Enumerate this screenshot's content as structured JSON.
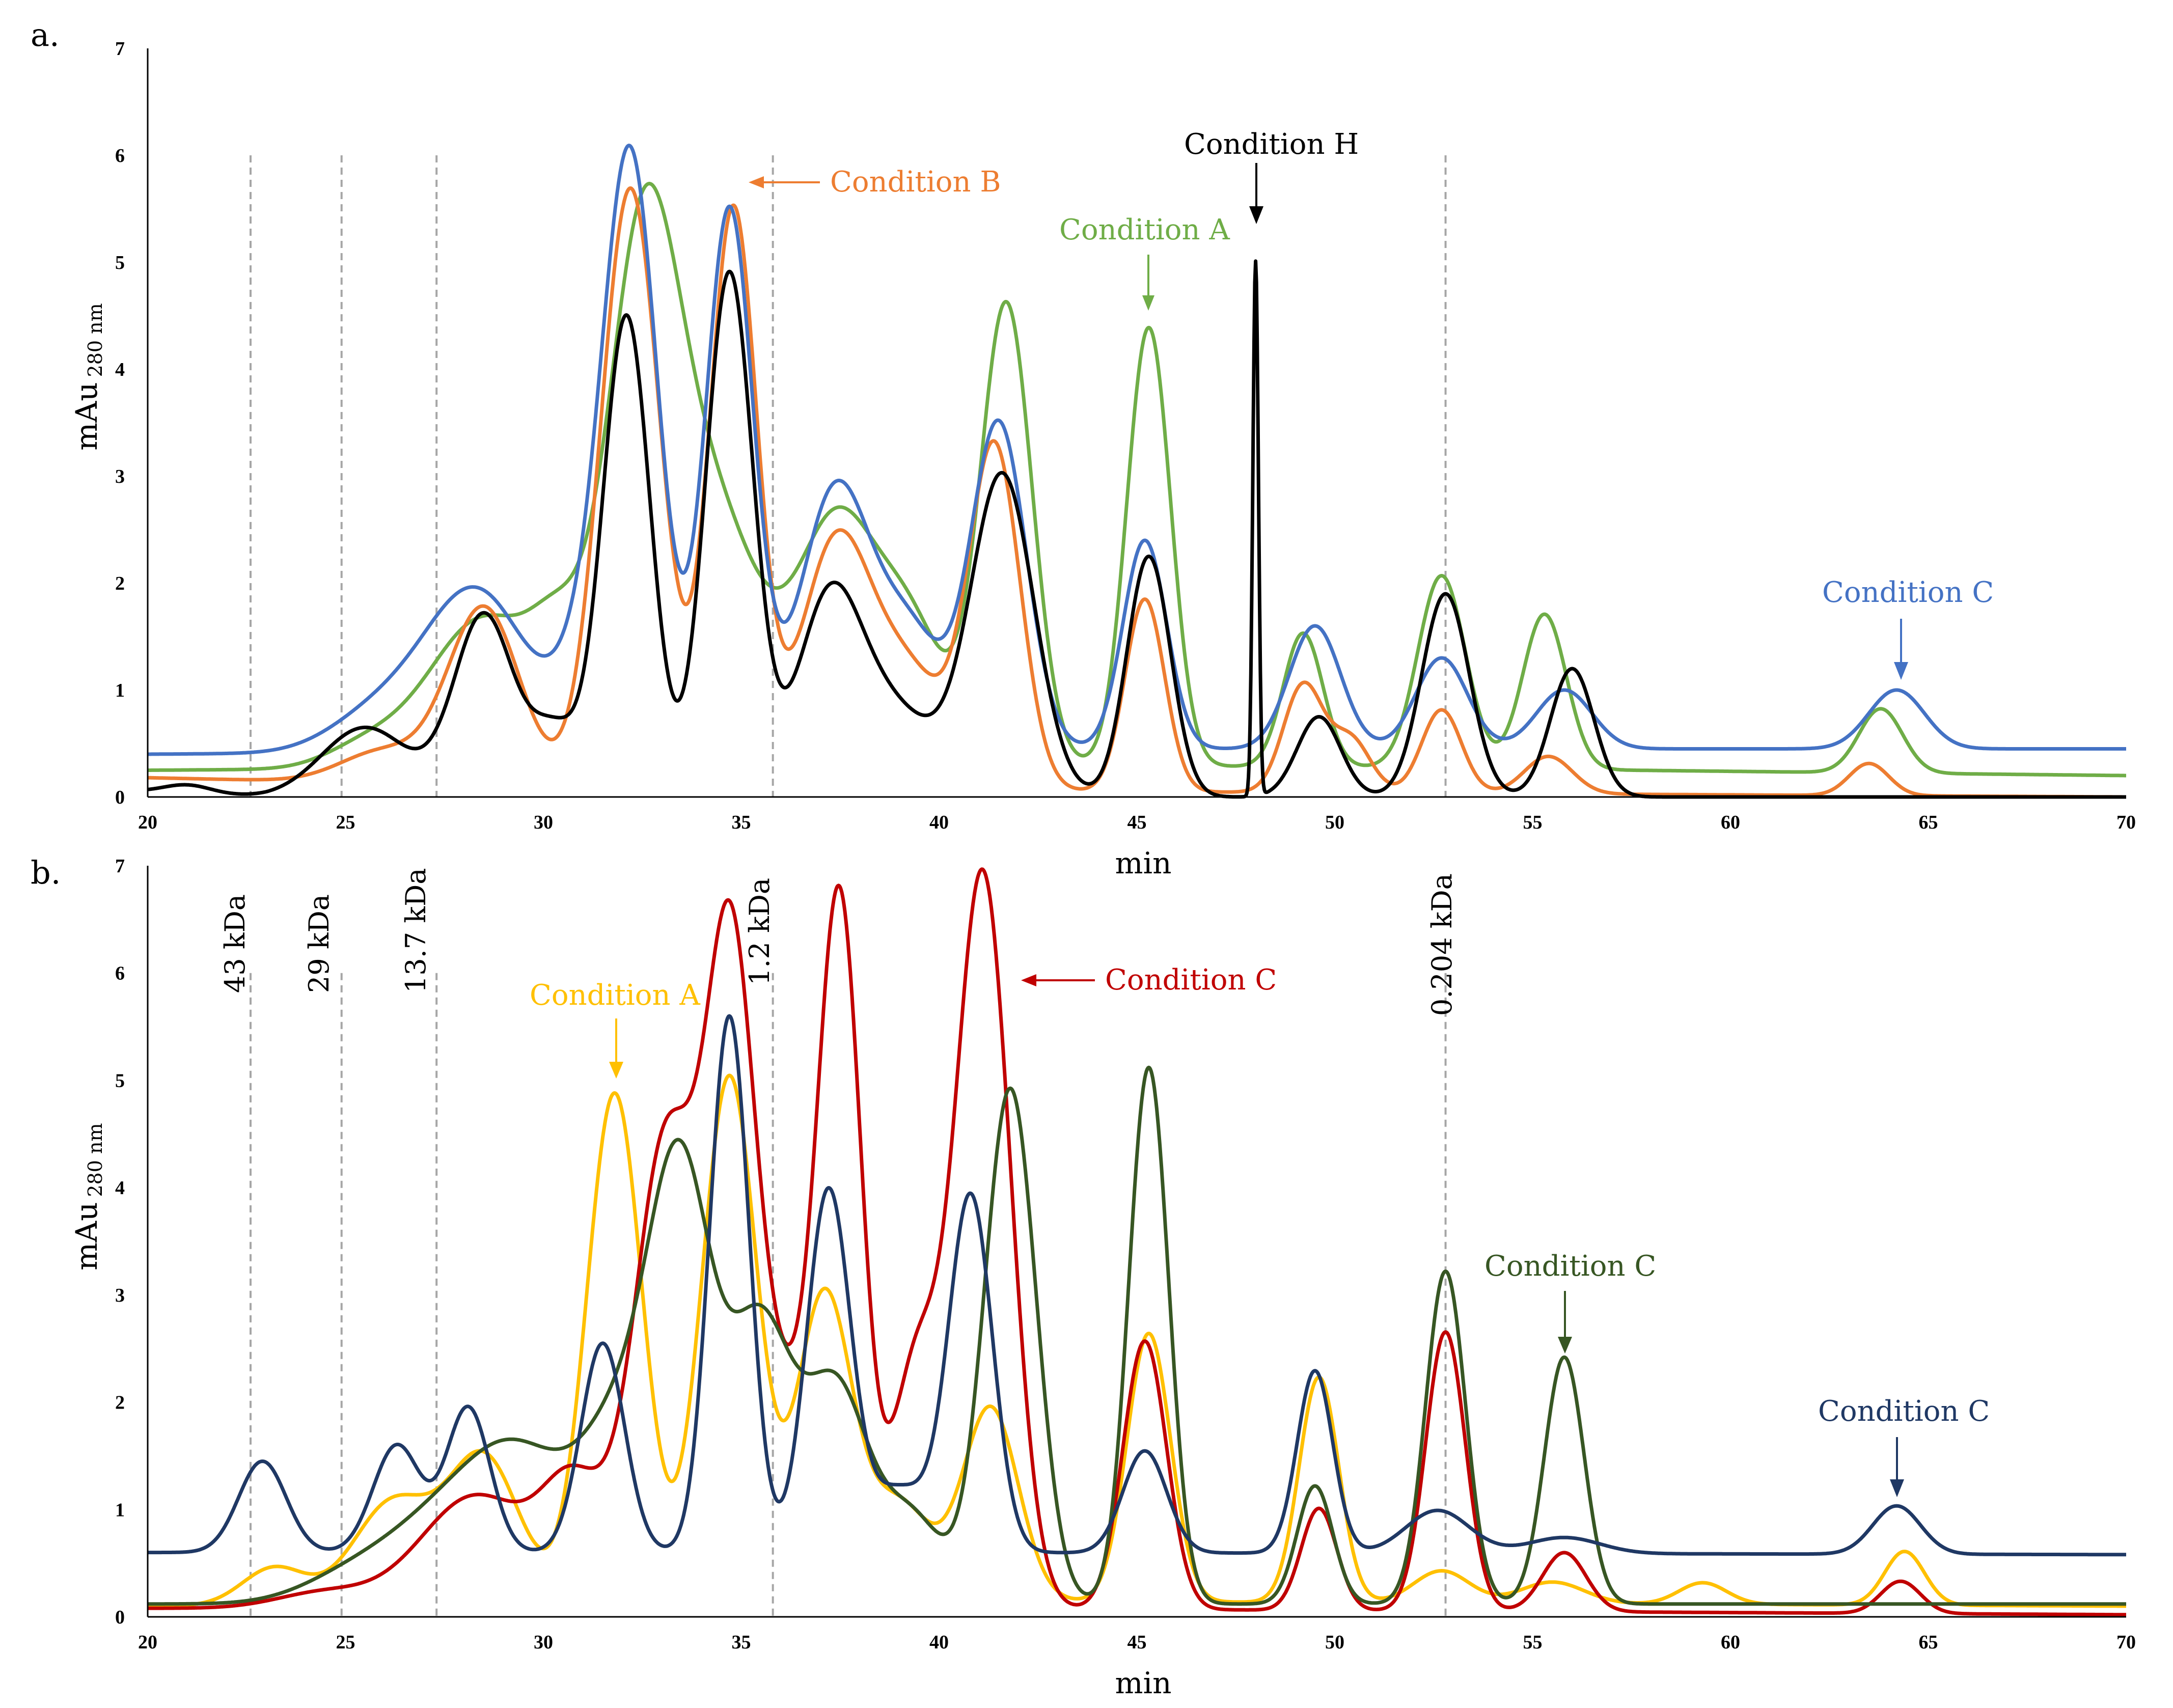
{
  "chart_data": [
    {
      "panel_label": "a.",
      "type": "line",
      "xlabel": "min",
      "ylabel": "mAu",
      "ylabel_sub": "280 nm",
      "xlim": [
        20,
        70
      ],
      "ylim": [
        0,
        7
      ],
      "x_ticks": [
        "20",
        "25",
        "30",
        "35",
        "40",
        "45",
        "50",
        "55",
        "60",
        "65",
        "70"
      ],
      "y_ticks": [
        "0",
        "1",
        "2",
        "3",
        "4",
        "5",
        "6",
        "7"
      ],
      "reference_lines_x": [
        22.6,
        24.9,
        27.3,
        35.8,
        52.8
      ],
      "series": [
        {
          "name": "Condition A",
          "color": "#6FAD47",
          "width": 7,
          "base": [
            [
              20,
              0.25
            ],
            [
              40,
              0.3
            ],
            [
              50,
              0.28
            ],
            [
              70,
              0.2
            ]
          ],
          "peaks": [
            [
              25.5,
              0.2,
              1.0
            ],
            [
              28.5,
              1.4,
              1.4
            ],
            [
              30.4,
              0.8,
              0.7
            ],
            [
              32.5,
              4.6,
              0.9
            ],
            [
              34.3,
              2.3,
              1.2
            ],
            [
              37.4,
              2.2,
              1.0
            ],
            [
              39.3,
              1.2,
              0.9
            ],
            [
              41.7,
              4.3,
              0.65
            ],
            [
              45.3,
              4.1,
              0.55
            ],
            [
              49.2,
              1.25,
              0.5
            ],
            [
              52.7,
              1.8,
              0.6
            ],
            [
              55.3,
              1.45,
              0.55
            ],
            [
              63.8,
              0.6,
              0.55
            ]
          ]
        },
        {
          "name": "Condition B",
          "color": "#ED7D31",
          "width": 7,
          "base": [
            [
              20,
              0.18
            ],
            [
              30,
              0.1
            ],
            [
              45,
              0.05
            ],
            [
              60,
              0.02
            ],
            [
              70,
              0.0
            ]
          ],
          "peaks": [
            [
              26.0,
              0.3,
              1.1
            ],
            [
              28.5,
              1.65,
              0.9
            ],
            [
              32.2,
              5.6,
              0.75
            ],
            [
              34.8,
              5.4,
              0.6
            ],
            [
              37.4,
              2.3,
              0.9
            ],
            [
              39.3,
              1.0,
              0.9
            ],
            [
              41.4,
              3.2,
              0.65
            ],
            [
              45.2,
              1.8,
              0.5
            ],
            [
              49.2,
              1.0,
              0.5
            ],
            [
              50.4,
              0.5,
              0.5
            ],
            [
              52.7,
              0.78,
              0.5
            ],
            [
              55.4,
              0.35,
              0.6
            ],
            [
              63.5,
              0.3,
              0.5
            ]
          ]
        },
        {
          "name": "Condition C",
          "color": "#4472C4",
          "width": 7,
          "base": [
            [
              20,
              0.4
            ],
            [
              40,
              0.45
            ],
            [
              70,
              0.45
            ]
          ],
          "peaks": [
            [
              25.8,
              0.35,
              1.2
            ],
            [
              28.3,
              1.5,
              1.3
            ],
            [
              31.0,
              0.6,
              0.7
            ],
            [
              32.2,
              5.5,
              0.7
            ],
            [
              34.7,
              5.05,
              0.6
            ],
            [
              37.4,
              2.45,
              0.9
            ],
            [
              39.3,
              1.0,
              0.8
            ],
            [
              41.5,
              3.05,
              0.7
            ],
            [
              45.2,
              1.95,
              0.55
            ],
            [
              49.5,
              1.15,
              0.65
            ],
            [
              52.7,
              0.85,
              0.65
            ],
            [
              55.8,
              0.55,
              0.7
            ],
            [
              64.2,
              0.55,
              0.7
            ]
          ]
        },
        {
          "name": "Condition H",
          "color": "#000000",
          "width": 7,
          "base": [
            [
              20,
              0.05
            ],
            [
              23,
              0.0
            ],
            [
              70,
              0.0
            ]
          ],
          "peaks": [
            [
              21.0,
              0.08,
              0.6
            ],
            [
              25.5,
              0.65,
              1.1
            ],
            [
              28.5,
              1.7,
              0.75
            ],
            [
              30.3,
              0.6,
              0.6
            ],
            [
              32.1,
              4.5,
              0.6
            ],
            [
              34.7,
              4.9,
              0.6
            ],
            [
              37.2,
              1.7,
              0.8
            ],
            [
              38.8,
              0.8,
              1.1
            ],
            [
              41.6,
              3.0,
              0.8
            ],
            [
              45.3,
              2.25,
              0.55
            ],
            [
              48.0,
              5.0,
              0.07
            ],
            [
              49.6,
              0.75,
              0.55
            ],
            [
              52.8,
              1.9,
              0.6
            ],
            [
              56.0,
              1.2,
              0.55
            ]
          ]
        }
      ],
      "annotations": [
        {
          "text": "Condition B",
          "color": "#ED7D31"
        },
        {
          "text": "Condition A",
          "color": "#6FAD47"
        },
        {
          "text": "Condition H",
          "color": "#000000"
        },
        {
          "text": "Condition C",
          "color": "#4472C4"
        }
      ]
    },
    {
      "panel_label": "b.",
      "type": "line",
      "xlabel": "min",
      "ylabel": "mAu",
      "ylabel_sub": "280 nm",
      "xlim": [
        20,
        70
      ],
      "ylim": [
        0,
        7
      ],
      "x_ticks": [
        "20",
        "25",
        "30",
        "35",
        "40",
        "45",
        "50",
        "55",
        "60",
        "65",
        "70"
      ],
      "y_ticks": [
        "0",
        "1",
        "2",
        "3",
        "4",
        "5",
        "6",
        "7"
      ],
      "reference_lines_x": [
        22.6,
        24.9,
        27.3,
        35.8,
        52.8
      ],
      "standards": [
        "43 kDa",
        "29 kDa",
        "13.7 kDa",
        "1.2 kDa",
        "0.204 kDa"
      ],
      "series": [
        {
          "name": "Condition A (yellow)",
          "color": "#FFC000",
          "width": 7,
          "base": [
            [
              20,
              0.1
            ],
            [
              40,
              0.15
            ],
            [
              70,
              0.1
            ]
          ],
          "peaks": [
            [
              23.2,
              0.35,
              0.8
            ],
            [
              26.2,
              0.95,
              1.0
            ],
            [
              28.5,
              1.35,
              0.9
            ],
            [
              31.8,
              4.75,
              0.7
            ],
            [
              34.7,
              4.9,
              0.7
            ],
            [
              37.1,
              2.85,
              0.7
            ],
            [
              39.0,
              0.9,
              0.8
            ],
            [
              41.3,
              1.8,
              0.7
            ],
            [
              45.3,
              2.5,
              0.55
            ],
            [
              49.6,
              2.1,
              0.5
            ],
            [
              52.7,
              0.3,
              0.7
            ],
            [
              55.5,
              0.2,
              0.8
            ],
            [
              59.3,
              0.2,
              0.6
            ],
            [
              64.4,
              0.5,
              0.5
            ]
          ]
        },
        {
          "name": "Condition C (red)",
          "color": "#C00000",
          "width": 7,
          "base": [
            [
              20,
              0.08
            ],
            [
              40,
              0.08
            ],
            [
              70,
              0.02
            ]
          ],
          "peaks": [
            [
              24.5,
              0.15,
              1.2
            ],
            [
              28.3,
              1.05,
              1.4
            ],
            [
              30.8,
              1.05,
              0.8
            ],
            [
              33.1,
              4.3,
              0.8
            ],
            [
              34.7,
              4.8,
              0.6
            ],
            [
              35.8,
              2.0,
              1.1
            ],
            [
              37.5,
              6.1,
              0.55
            ],
            [
              39.4,
              2.15,
              0.6
            ],
            [
              41.1,
              6.85,
              0.7
            ],
            [
              45.2,
              2.5,
              0.55
            ],
            [
              49.6,
              0.95,
              0.45
            ],
            [
              52.8,
              2.6,
              0.5
            ],
            [
              55.8,
              0.55,
              0.55
            ],
            [
              64.3,
              0.3,
              0.5
            ]
          ]
        },
        {
          "name": "Condition C (dark green)",
          "color": "#375623",
          "width": 7,
          "base": [
            [
              20,
              0.12
            ],
            [
              40,
              0.12
            ],
            [
              70,
              0.12
            ]
          ],
          "peaks": [
            [
              25.2,
              0.25,
              1.3
            ],
            [
              27.5,
              0.7,
              1.4
            ],
            [
              29.5,
              1.2,
              1.3
            ],
            [
              32.0,
              1.5,
              1.0
            ],
            [
              33.5,
              3.7,
              0.8
            ],
            [
              35.5,
              2.5,
              0.8
            ],
            [
              37.4,
              1.95,
              0.8
            ],
            [
              39.3,
              0.8,
              0.8
            ],
            [
              41.8,
              4.8,
              0.65
            ],
            [
              45.3,
              5.0,
              0.5
            ],
            [
              49.5,
              1.1,
              0.45
            ],
            [
              52.8,
              3.1,
              0.5
            ],
            [
              55.8,
              2.3,
              0.5
            ]
          ]
        },
        {
          "name": "Condition C (navy)",
          "color": "#1F3864",
          "width": 7,
          "base": [
            [
              20,
              0.6
            ],
            [
              40,
              0.6
            ],
            [
              70,
              0.58
            ]
          ],
          "peaks": [
            [
              22.9,
              0.85,
              0.6
            ],
            [
              26.3,
              1.0,
              0.6
            ],
            [
              28.1,
              1.35,
              0.55
            ],
            [
              31.5,
              1.95,
              0.55
            ],
            [
              34.7,
              5.0,
              0.5
            ],
            [
              37.2,
              3.35,
              0.55
            ],
            [
              39.0,
              0.6,
              0.8
            ],
            [
              40.8,
              3.3,
              0.55
            ],
            [
              45.2,
              0.95,
              0.55
            ],
            [
              49.5,
              1.7,
              0.45
            ],
            [
              52.6,
              0.4,
              0.8
            ],
            [
              55.8,
              0.15,
              0.9
            ],
            [
              64.2,
              0.45,
              0.6
            ]
          ]
        }
      ],
      "annotations": [
        {
          "text": "Condition A",
          "color": "#FFC000"
        },
        {
          "text": "Condition C",
          "color": "#C00000"
        },
        {
          "text": "Condition C",
          "color": "#375623"
        },
        {
          "text": "Condition C",
          "color": "#1F3864"
        }
      ]
    }
  ]
}
